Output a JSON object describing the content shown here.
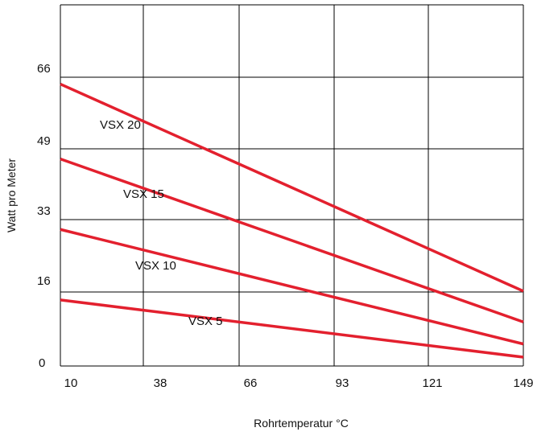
{
  "chart_data": {
    "type": "line",
    "title": "",
    "xlabel": "Rohrtemperatur °C",
    "ylabel": "Watt pro Meter",
    "x_ticks": [
      "10",
      "38",
      "66",
      "93",
      "121",
      "149"
    ],
    "y_ticks": [
      "0",
      "16",
      "33",
      "49",
      "66"
    ],
    "xlim": [
      10,
      149
    ],
    "ylim": [
      0,
      82
    ],
    "grid": true,
    "legend": "inline labels on lines",
    "line_color": "#e3202e",
    "series": [
      {
        "name": "VSX 20",
        "x": [
          10,
          149
        ],
        "y": [
          64,
          17
        ]
      },
      {
        "name": "VSX 15",
        "x": [
          10,
          149
        ],
        "y": [
          47,
          10
        ]
      },
      {
        "name": "VSX 10",
        "x": [
          10,
          149
        ],
        "y": [
          31,
          5
        ]
      },
      {
        "name": "VSX 5",
        "x": [
          10,
          149
        ],
        "y": [
          15,
          2
        ]
      }
    ]
  }
}
